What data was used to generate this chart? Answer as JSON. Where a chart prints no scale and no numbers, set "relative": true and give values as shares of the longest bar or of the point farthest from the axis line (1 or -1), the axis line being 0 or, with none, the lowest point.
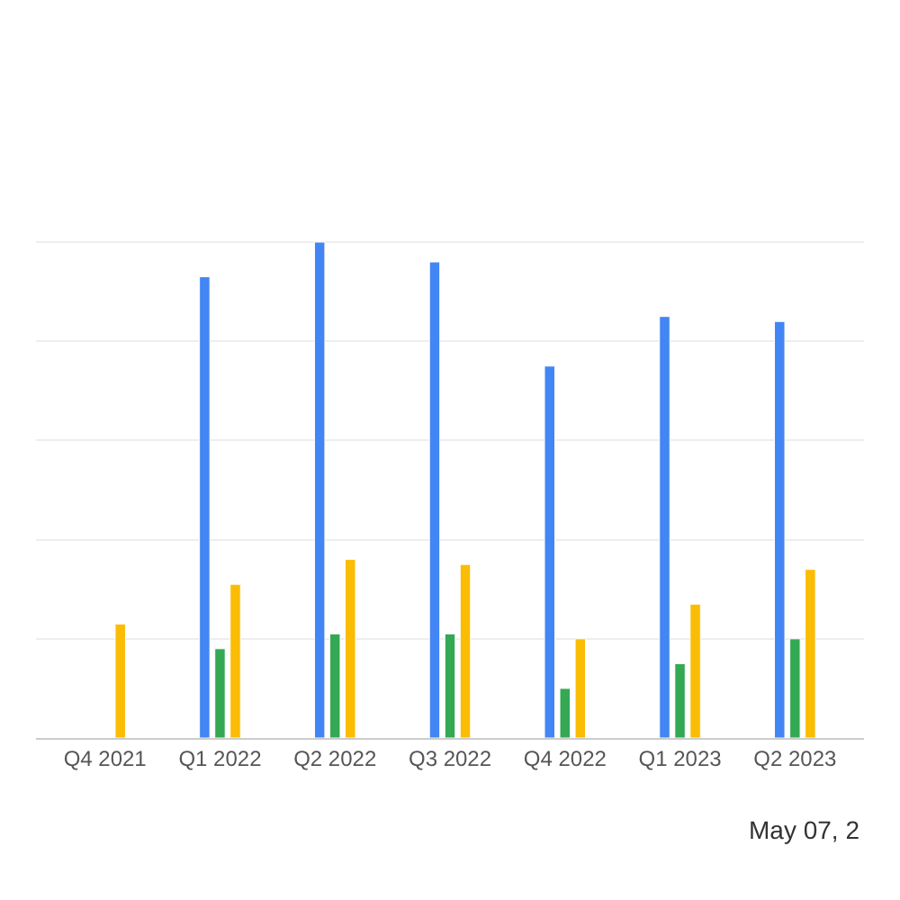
{
  "chart_data": {
    "type": "bar",
    "relative": true,
    "grid": "y",
    "categories": [
      "Q4 2021",
      "Q1 2022",
      "Q2 2022",
      "Q3 2022",
      "Q4 2022",
      "Q1 2023",
      "Q2 2023"
    ],
    "series": [
      {
        "color": "#4285f4",
        "values": [
          null,
          0.93,
          1,
          0.96,
          0.75,
          0.85,
          0.84
        ]
      },
      {
        "color": "#34a853",
        "values": [
          null,
          0.18,
          0.21,
          0.21,
          0.1,
          0.15,
          0.2
        ]
      },
      {
        "color": "#fbbc04",
        "values": [
          0.23,
          0.31,
          0.36,
          0.35,
          0.2,
          0.27,
          0.34
        ]
      }
    ],
    "annotations": [
      "May 07, 2"
    ]
  }
}
